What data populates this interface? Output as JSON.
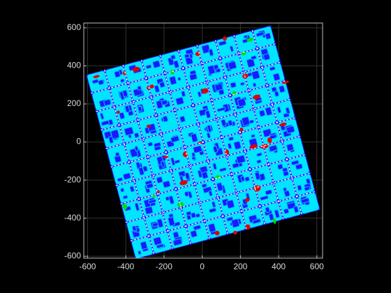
{
  "chart_data": {
    "type": "image",
    "xlim": [
      -620,
      630
    ],
    "xticks": [
      -600,
      -400,
      -200,
      0,
      200,
      400,
      600
    ],
    "ylim": [
      -610,
      625
    ],
    "yticks": [
      -600,
      -400,
      -200,
      0,
      200,
      400,
      600
    ],
    "grid": true
  }
}
